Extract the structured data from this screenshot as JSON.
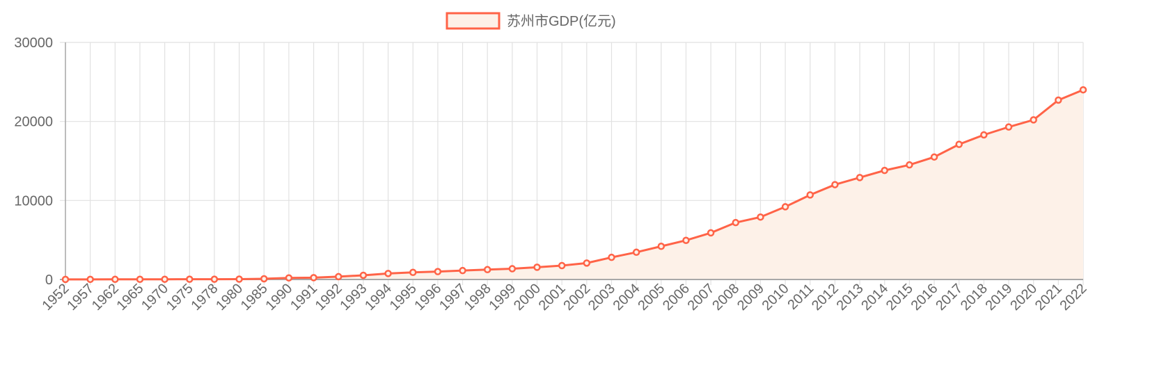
{
  "legend": {
    "label": "苏州市GDP(亿元)",
    "stroke_color": "#ff6347",
    "fill_color": "#fdf1e8"
  },
  "colors": {
    "line": "#ff6347",
    "area": "#fdf1e8",
    "grid": "#e1e1e1",
    "axis": "#a8a8a8",
    "tick_text": "#666666"
  },
  "chart_data": {
    "type": "line",
    "title": "",
    "xlabel": "",
    "ylabel": "",
    "ylim": [
      0,
      30000
    ],
    "yticks": [
      0,
      10000,
      20000,
      30000
    ],
    "grid": true,
    "legend_position": "top",
    "fill": true,
    "categories": [
      "1952",
      "1957",
      "1962",
      "1965",
      "1970",
      "1975",
      "1978",
      "1980",
      "1985",
      "1990",
      "1991",
      "1992",
      "1993",
      "1994",
      "1995",
      "1996",
      "1997",
      "1998",
      "1999",
      "2000",
      "2001",
      "2002",
      "2003",
      "2004",
      "2005",
      "2006",
      "2007",
      "2008",
      "2009",
      "2010",
      "2011",
      "2012",
      "2013",
      "2014",
      "2015",
      "2016",
      "2017",
      "2018",
      "2019",
      "2020",
      "2021",
      "2022"
    ],
    "series": [
      {
        "name": "苏州市GDP(亿元)",
        "values": [
          10,
          15,
          18,
          22,
          25,
          32,
          32,
          42,
          90,
          202,
          230,
          360,
          530,
          760,
          900,
          1000,
          1130,
          1250,
          1360,
          1550,
          1760,
          2080,
          2800,
          3450,
          4200,
          4950,
          5900,
          7200,
          7900,
          9200,
          10700,
          12000,
          12900,
          13800,
          14500,
          15500,
          17100,
          18300,
          19300,
          20200,
          22700,
          24000
        ]
      }
    ]
  }
}
